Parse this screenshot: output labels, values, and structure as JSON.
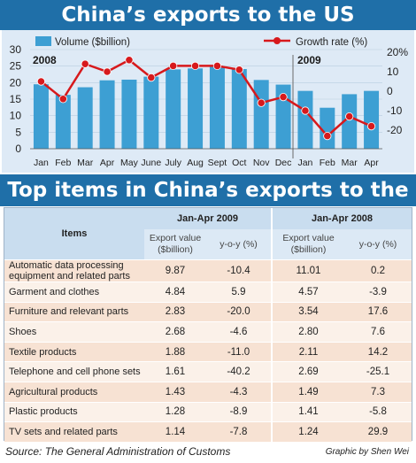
{
  "banner_top": "China’s exports to the US",
  "banner_bottom": "Top items in China’s exports to the US",
  "chart_data": {
    "type": "bar+line",
    "legend": {
      "volume": "Volume ($billion)",
      "growth": "Growth rate (%)"
    },
    "year_labels": [
      "2008",
      "2009"
    ],
    "categories": [
      "Jan",
      "Feb",
      "Mar",
      "Apr",
      "May",
      "June",
      "July",
      "Aug",
      "Sept",
      "Oct",
      "Nov",
      "Dec",
      "Jan",
      "Feb",
      "Mar",
      "Apr"
    ],
    "series": [
      {
        "name": "Volume ($billion)",
        "type": "bar",
        "axis": "left",
        "values": [
          19.5,
          16.3,
          18.6,
          20.7,
          20.9,
          21.8,
          24.0,
          24.3,
          25.0,
          24.1,
          20.8,
          19.4,
          17.5,
          12.4,
          16.5,
          17.5
        ]
      },
      {
        "name": "Growth rate (%)",
        "type": "line",
        "axis": "right",
        "values": [
          5,
          -4,
          14,
          10,
          16,
          7,
          13,
          13,
          13,
          11,
          -6,
          -3,
          -10,
          -23,
          -13,
          -18
        ]
      }
    ],
    "y_left": {
      "ticks": [
        0,
        5,
        10,
        15,
        20,
        25,
        30
      ],
      "range": [
        0,
        30
      ]
    },
    "y_right": {
      "ticks": [
        "20%",
        "10",
        "0",
        "-10",
        "-20"
      ],
      "range": [
        -30,
        25
      ]
    },
    "colors": {
      "bar": "#3d9fd3",
      "line": "#d7191c",
      "panel": "#deeaf6"
    }
  },
  "table": {
    "header_items": "Items",
    "header_2009": "Jan-Apr 2009",
    "header_2008": "Jan-Apr 2008",
    "sub_export": "Export value ($billion)",
    "sub_yoy": "y-o-y (%)",
    "rows": [
      {
        "item": "Automatic data processing equipment and related parts",
        "v09": "9.87",
        "y09": "-10.4",
        "v08": "11.01",
        "y08": "0.2"
      },
      {
        "item": "Garment and clothes",
        "v09": "4.84",
        "y09": "5.9",
        "v08": "4.57",
        "y08": "-3.9"
      },
      {
        "item": "Furniture and relevant parts",
        "v09": "2.83",
        "y09": "-20.0",
        "v08": "3.54",
        "y08": "17.6"
      },
      {
        "item": "Shoes",
        "v09": "2.68",
        "y09": "-4.6",
        "v08": "2.80",
        "y08": "7.6"
      },
      {
        "item": "Textile products",
        "v09": "1.88",
        "y09": "-11.0",
        "v08": "2.11",
        "y08": "14.2"
      },
      {
        "item": "Telephone and cell phone sets",
        "v09": "1.61",
        "y09": "-40.2",
        "v08": "2.69",
        "y08": "-25.1"
      },
      {
        "item": "Agricultural products",
        "v09": "1.43",
        "y09": "-4.3",
        "v08": "1.49",
        "y08": "7.3"
      },
      {
        "item": "Plastic products",
        "v09": "1.28",
        "y09": "-8.9",
        "v08": "1.41",
        "y08": "-5.8"
      },
      {
        "item": "TV sets and related parts",
        "v09": "1.14",
        "y09": "-7.8",
        "v08": "1.24",
        "y08": "29.9"
      }
    ]
  },
  "footer": {
    "source": "Source: The General Administration of Customs",
    "credit": "Graphic by Shen Wei"
  }
}
